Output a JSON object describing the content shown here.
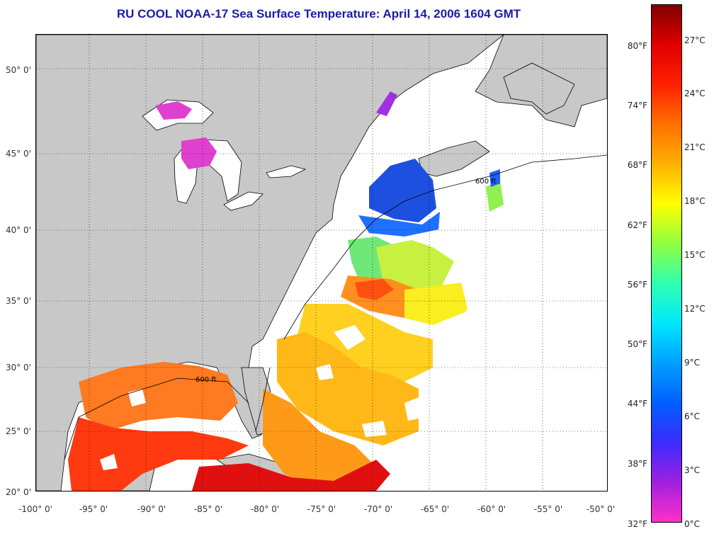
{
  "title": "RU COOL  NOAA-17  Sea Surface Temperature:  April 14, 2006 1604 GMT",
  "map": {
    "lat_labels": [
      "50° 0'",
      "45° 0'",
      "40° 0'",
      "35° 0'",
      "30° 0'",
      "25° 0'",
      "20° 0'"
    ],
    "lon_labels": [
      "-100° 0'",
      "-95° 0'",
      "-90° 0'",
      "-85° 0'",
      "-80° 0'",
      "-75° 0'",
      "-70° 0'",
      "-65° 0'",
      "-60° 0'",
      "-55° 0'",
      "-50° 0'"
    ],
    "bathymetry_label": "600 ft",
    "colors": {
      "land": "#c8c8c8",
      "no_data": "#ffffff",
      "grid": "#000000"
    }
  },
  "colorbar": {
    "fahrenheit_labels": [
      "80°F",
      "74°F",
      "68°F",
      "62°F",
      "56°F",
      "50°F",
      "44°F",
      "38°F",
      "32°F"
    ],
    "celsius_labels": [
      "27°C",
      "24°C",
      "21°C",
      "18°C",
      "15°C",
      "12°C",
      "9°C",
      "6°C",
      "3°C",
      "0°C"
    ],
    "stops": [
      "#ff30c8",
      "#a020e0",
      "#3a2bff",
      "#0060ff",
      "#00a0ff",
      "#00e8ff",
      "#30ffb0",
      "#90ff40",
      "#ffff00",
      "#ffb000",
      "#ff7000",
      "#ff2000",
      "#e00000",
      "#800000"
    ]
  }
}
